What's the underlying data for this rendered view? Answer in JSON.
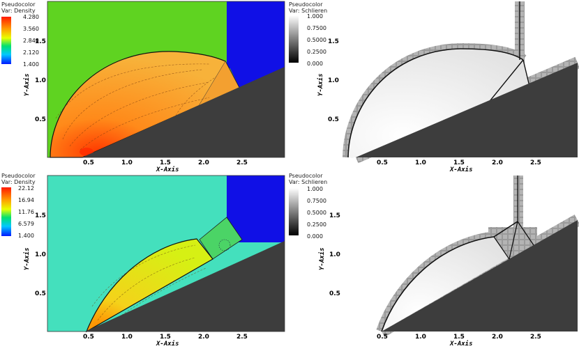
{
  "panels": [
    {
      "id": "top-left",
      "legend": {
        "title": "Pseudocolor",
        "var": "Var: Density",
        "ticks": [
          "4.280",
          "3.560",
          "2.840",
          "2.120",
          "1.400"
        ]
      },
      "xaxis": {
        "label": "X-Axis",
        "ticks": [
          "0.5",
          "1.0",
          "1.5",
          "2.0",
          "2.5"
        ]
      },
      "yaxis": {
        "label": "Y-Axis",
        "ticks": [
          "1.5",
          "1.0",
          "0.5"
        ]
      }
    },
    {
      "id": "top-right",
      "legend": {
        "title": "Pseudocolor",
        "var": "Var: Schlieren",
        "ticks": [
          "1.000",
          "0.7500",
          "0.5000",
          "0.2500",
          "0.000"
        ]
      },
      "xaxis": {
        "label": "X-Axis",
        "ticks": [
          "0.5",
          "1.0",
          "1.5",
          "2.0",
          "2.5"
        ]
      },
      "yaxis": {
        "label": "Y-Axis",
        "ticks": [
          "1.5",
          "1.0",
          "0.5"
        ]
      }
    },
    {
      "id": "bottom-left",
      "legend": {
        "title": "Pseudocolor",
        "var": "Var: Density",
        "ticks": [
          "22.12",
          "16.94",
          "11.76",
          "6.579",
          "1.400"
        ]
      },
      "xaxis": {
        "label": "X-Axis",
        "ticks": [
          "0.5",
          "1.0",
          "1.5",
          "2.0",
          "2.5"
        ]
      },
      "yaxis": {
        "label": "Y-Axis",
        "ticks": [
          "1.5",
          "1.0",
          "0.5"
        ]
      }
    },
    {
      "id": "bottom-right",
      "legend": {
        "title": "Pseudocolor",
        "var": "Var: Schlieren",
        "ticks": [
          "1.000",
          "0.7500",
          "0.5000",
          "0.2500",
          "0.000"
        ]
      },
      "xaxis": {
        "label": "X-Axis",
        "ticks": [
          "0.5",
          "1.0",
          "1.5",
          "2.0",
          "2.5"
        ]
      },
      "yaxis": {
        "label": "Y-Axis",
        "ticks": [
          "1.5",
          "1.0",
          "0.5"
        ]
      }
    }
  ],
  "colors": {
    "wall": "#3d3d3d",
    "top_left_background": "#5fd321",
    "bottom_left_background": "#44e0bd",
    "inflow": "#1010e6",
    "schlieren_background": "#ffffff"
  }
}
